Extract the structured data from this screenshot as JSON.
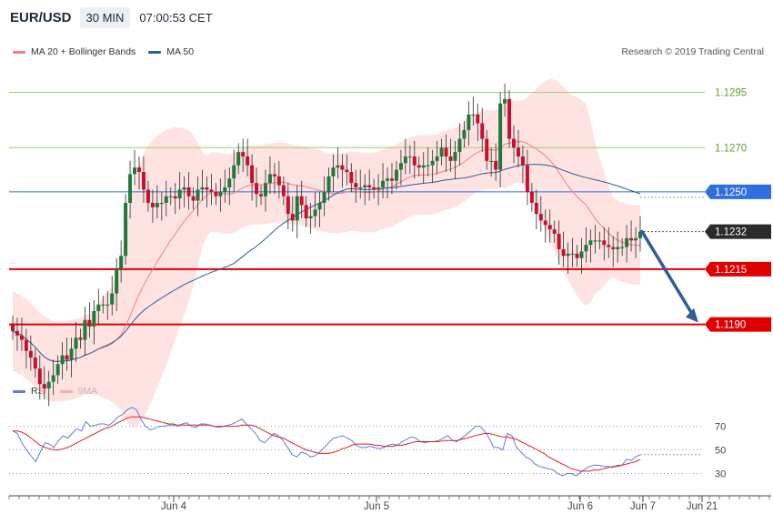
{
  "header": {
    "pair": "EUR/USD",
    "timeframe": "30 MIN",
    "time": "07:00:53 CET"
  },
  "price_legend": [
    {
      "label": "MA 20 + Bollinger Bands",
      "color": "#f08080"
    },
    {
      "label": "MA 50",
      "color": "#2f5d96"
    }
  ],
  "credit": "Research © 2019 Trading Central",
  "rsi_legend": [
    {
      "label": "RSI",
      "color": "#5b7fd6"
    },
    {
      "label": "9MA",
      "color": "#e02020"
    }
  ],
  "chart_data": [
    {
      "type": "candlestick",
      "ylim": [
        1.1168,
        1.1308
      ],
      "price_labels": {
        "resistance_2": "1.1295",
        "resistance_1": "1.1270",
        "pivot": "1.1250",
        "current": "1.1232",
        "support_1": "1.1215",
        "support_2": "1.1190"
      },
      "levels": [
        {
          "value": 1.1295,
          "label": "1.1295",
          "kind": "resistance"
        },
        {
          "value": 1.127,
          "label": "1.1270",
          "kind": "resistance"
        },
        {
          "value": 1.125,
          "label": "1.1250",
          "kind": "pivot"
        },
        {
          "value": 1.1232,
          "label": "1.1232",
          "kind": "current"
        },
        {
          "value": 1.1215,
          "label": "1.1215",
          "kind": "support"
        },
        {
          "value": 1.119,
          "label": "1.1190",
          "kind": "support"
        }
      ],
      "forecast_arrow": {
        "from": 1.1232,
        "to": 1.119,
        "direction": "down"
      },
      "x_ticks": [
        "Jun 4",
        "Jun 5",
        "Jun 6",
        "Jun 7",
        "Jun 21"
      ],
      "closes": [
        1.1187,
        1.1185,
        1.1183,
        1.1178,
        1.1175,
        1.117,
        1.1163,
        1.1161,
        1.1164,
        1.1167,
        1.1172,
        1.1176,
        1.1174,
        1.1179,
        1.1184,
        1.1183,
        1.1192,
        1.1189,
        1.1196,
        1.1199,
        1.1199,
        1.1199,
        1.1204,
        1.1215,
        1.1221,
        1.1245,
        1.1258,
        1.1261,
        1.1259,
        1.1251,
        1.1245,
        1.1243,
        1.1245,
        1.1245,
        1.1248,
        1.1248,
        1.1247,
        1.1251,
        1.1252,
        1.1248,
        1.1246,
        1.1251,
        1.1252,
        1.1251,
        1.125,
        1.1248,
        1.125,
        1.1252,
        1.1256,
        1.1262,
        1.1268,
        1.1266,
        1.1262,
        1.1254,
        1.1249,
        1.1248,
        1.1254,
        1.1258,
        1.1257,
        1.1253,
        1.1248,
        1.124,
        1.1237,
        1.1248,
        1.1244,
        1.1238,
        1.1239,
        1.1242,
        1.1245,
        1.125,
        1.1257,
        1.1261,
        1.1262,
        1.126,
        1.1259,
        1.1254,
        1.1252,
        1.1252,
        1.1253,
        1.1252,
        1.1251,
        1.1252,
        1.1255,
        1.1256,
        1.1255,
        1.126,
        1.1263,
        1.1266,
        1.1266,
        1.1262,
        1.1261,
        1.1262,
        1.1262,
        1.1264,
        1.1266,
        1.127,
        1.1266,
        1.1264,
        1.1268,
        1.1274,
        1.1278,
        1.1285,
        1.1285,
        1.1281,
        1.1274,
        1.1264,
        1.1264,
        1.126,
        1.129,
        1.1292,
        1.1274,
        1.127,
        1.1266,
        1.1262,
        1.125,
        1.1245,
        1.124,
        1.1237,
        1.1235,
        1.1233,
        1.1231,
        1.1224,
        1.1221,
        1.1222,
        1.1222,
        1.122,
        1.1223,
        1.1226,
        1.1228,
        1.1228,
        1.1228,
        1.1226,
        1.1225,
        1.1224,
        1.1225,
        1.1225,
        1.1229,
        1.1228,
        1.1229,
        1.1232
      ]
    },
    {
      "type": "line",
      "title": "RSI",
      "ylim": [
        15,
        92
      ],
      "y_ticks": [
        30,
        50,
        70
      ],
      "series": [
        {
          "name": "RSI",
          "values": [
            66,
            64,
            56,
            50,
            45,
            40,
            48,
            56,
            55,
            52,
            58,
            62,
            60,
            64,
            68,
            66,
            74,
            70,
            71,
            72,
            72,
            71,
            74,
            78,
            80,
            84,
            86,
            84,
            76,
            70,
            67,
            68,
            70,
            70,
            71,
            71,
            70,
            72,
            73,
            70,
            69,
            72,
            72,
            71,
            70,
            69,
            70,
            71,
            72,
            74,
            76,
            72,
            68,
            64,
            58,
            56,
            60,
            64,
            62,
            58,
            52,
            46,
            44,
            48,
            47,
            44,
            45,
            48,
            52,
            56,
            60,
            61,
            62,
            60,
            58,
            54,
            52,
            52,
            53,
            52,
            51,
            52,
            54,
            55,
            54,
            57,
            59,
            61,
            60,
            57,
            56,
            57,
            57,
            58,
            60,
            62,
            58,
            57,
            60,
            63,
            66,
            70,
            70,
            66,
            60,
            52,
            52,
            50,
            64,
            62,
            52,
            48,
            44,
            42,
            38,
            36,
            35,
            34,
            33,
            30,
            28,
            30,
            30,
            28,
            31,
            34,
            36,
            37,
            37,
            36,
            36,
            35,
            37,
            37,
            42,
            41,
            44,
            46
          ]
        },
        {
          "name": "9MA",
          "values": [
            66,
            66,
            65,
            63,
            60,
            57,
            54,
            52,
            51,
            50,
            50,
            51,
            52,
            54,
            56,
            58,
            60,
            62,
            64,
            66,
            68,
            69,
            71,
            73,
            75,
            77,
            78,
            78,
            78,
            77,
            76,
            75,
            74,
            73,
            72,
            72,
            71,
            71,
            71,
            71,
            71,
            71,
            71,
            71,
            70,
            70,
            70,
            70,
            70,
            70,
            71,
            71,
            71,
            70,
            68,
            66,
            64,
            62,
            61,
            60,
            58,
            56,
            54,
            52,
            50,
            49,
            48,
            47,
            47,
            47,
            48,
            49,
            51,
            52,
            54,
            55,
            55,
            55,
            55,
            54,
            54,
            53,
            53,
            53,
            54,
            54,
            55,
            56,
            57,
            57,
            57,
            57,
            57,
            57,
            58,
            58,
            58,
            58,
            59,
            60,
            61,
            62,
            63,
            64,
            64,
            63,
            62,
            61,
            61,
            60,
            59,
            57,
            55,
            53,
            51,
            49,
            47,
            44,
            42,
            40,
            38,
            36,
            34,
            33,
            32,
            32,
            32,
            33,
            33,
            34,
            35,
            36,
            36,
            37,
            38,
            39,
            40,
            42
          ]
        }
      ]
    }
  ]
}
